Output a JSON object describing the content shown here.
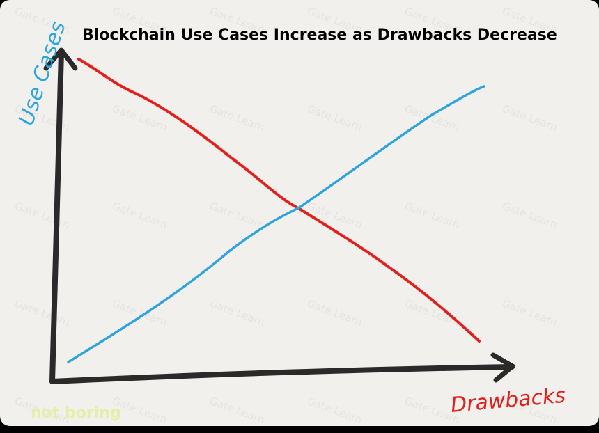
{
  "title": "Blockchain Use Cases Increase as Drawbacks Decrease",
  "axes": {
    "y_label": "Use Cases",
    "x_label": "Drawbacks"
  },
  "watermarks": {
    "brand": "not boring",
    "repeated": "Gate Learn"
  }
}
